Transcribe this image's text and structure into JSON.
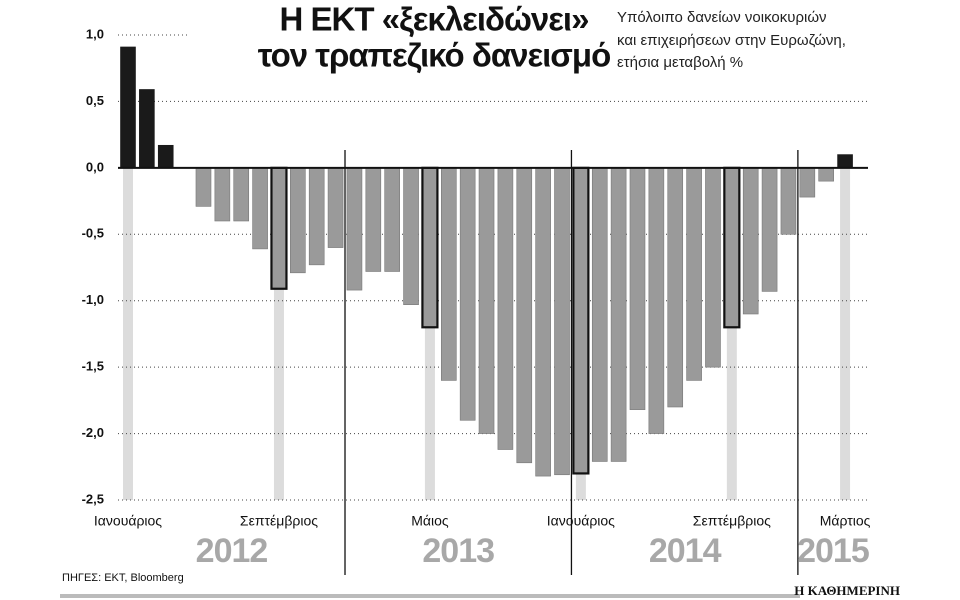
{
  "chart_data": {
    "type": "bar",
    "title": [
      "Η ΕΚΤ «ξεκλειδώνει»",
      "τον τραπεζικό δανεισμό"
    ],
    "subtitle": [
      "Υπόλοιπο δανείων νοικοκυριών",
      "και επιχειρήσεων στην Ευρωζώνη,",
      "ετήσια μεταβολή %"
    ],
    "source": "ΠΗΓΕΣ: ΕΚΤ, Bloomberg",
    "publisher": "Η ΚΑΘΗΜΕΡΙΝΗ",
    "years": [
      "2012",
      "2013",
      "2014",
      "2015"
    ],
    "categories": [
      "Ιανουάριος",
      null,
      null,
      null,
      null,
      null,
      null,
      null,
      "Σεπτέμβριος",
      null,
      null,
      null,
      null,
      null,
      null,
      null,
      "Μάιος",
      null,
      null,
      null,
      null,
      null,
      null,
      null,
      "Ιανουάριος",
      null,
      null,
      null,
      null,
      null,
      null,
      null,
      "Σεπτέμβριος",
      null,
      null,
      null,
      null,
      null,
      "Μάρτιος"
    ],
    "values": [
      0.91,
      0.59,
      0.17,
      0,
      -0.29,
      -0.4,
      -0.4,
      -0.61,
      -0.91,
      -0.79,
      -0.73,
      -0.6,
      -0.92,
      -0.78,
      -0.78,
      -1.03,
      -1.2,
      -1.6,
      -1.9,
      -2.0,
      -2.12,
      -2.22,
      -2.32,
      -2.31,
      -2.3,
      -2.21,
      -2.21,
      -1.82,
      -2.0,
      -1.8,
      -1.6,
      -1.5,
      -1.2,
      -1.1,
      -0.93,
      -0.5,
      -0.22,
      -0.1,
      0.1
    ],
    "color": "#9a9a9a",
    "positive_color": "#1a1a1a",
    "highlight_color": "#dcdcdc",
    "ylim": [
      -2.5,
      1.0
    ],
    "yticks": [
      {
        "value": 1.0,
        "label": "1,0"
      },
      {
        "value": 0.5,
        "label": "0,5"
      },
      {
        "value": 0,
        "label": "0,0"
      },
      {
        "value": -0.5,
        "label": "-0,5"
      },
      {
        "value": -1.0,
        "label": "-1,0"
      },
      {
        "value": -1.5,
        "label": "-1,5"
      },
      {
        "value": -2.0,
        "label": "-2,0"
      },
      {
        "value": -2.5,
        "label": "-2,5"
      }
    ],
    "grid": true
  }
}
